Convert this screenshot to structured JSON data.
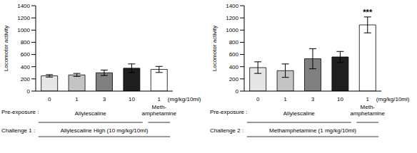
{
  "chart_data": [
    {
      "type": "bar",
      "y_label": "Locomotor activity",
      "categories": [
        "0",
        "1",
        "3",
        "10",
        "1"
      ],
      "values": [
        250,
        265,
        300,
        375,
        355
      ],
      "errors": [
        20,
        25,
        45,
        70,
        50
      ],
      "colors": [
        "#e6e6e6",
        "#c4c4c4",
        "#808080",
        "#1e1e1e",
        "#ffffff"
      ],
      "ylim": [
        0,
        1400
      ],
      "yticks": [
        0,
        200,
        400,
        600,
        800,
        1000,
        1200,
        1400
      ],
      "dose_unit": "(mg/kg/10ml)",
      "pre_exposure_label": "Pre-exposure :",
      "pre_exposure_groups": [
        {
          "lines": [
            "Allylescaline"
          ],
          "first": 0,
          "last": 3
        },
        {
          "lines": [
            "Meth-",
            "amphetamine"
          ],
          "first": 4,
          "last": 4
        }
      ],
      "challenge_label": "Challenge 1 :",
      "challenge": "Allylescaline High (10 mg/kg/10ml)"
    },
    {
      "type": "bar",
      "y_label": "Locomotor activity",
      "categories": [
        "0",
        "1",
        "3",
        "10",
        "1"
      ],
      "values": [
        385,
        335,
        530,
        560,
        1085
      ],
      "errors": [
        95,
        110,
        165,
        90,
        130
      ],
      "colors": [
        "#e6e6e6",
        "#c4c4c4",
        "#808080",
        "#1e1e1e",
        "#ffffff"
      ],
      "ylim": [
        0,
        1400
      ],
      "yticks": [
        0,
        200,
        400,
        600,
        800,
        1000,
        1200,
        1400
      ],
      "dose_unit": "(mg/kg/10ml)",
      "pre_exposure_label": "Pre-exposure :",
      "pre_exposure_groups": [
        {
          "lines": [
            "Allylescaline"
          ],
          "first": 0,
          "last": 3
        },
        {
          "lines": [
            "Meth-",
            "amphetamine"
          ],
          "first": 4,
          "last": 4
        }
      ],
      "challenge_label": "Challenge 2 :",
      "challenge": "Methamphetamine (1 mg/kg/10ml)",
      "annotations": [
        {
          "text": "***",
          "index": 4
        }
      ]
    }
  ]
}
